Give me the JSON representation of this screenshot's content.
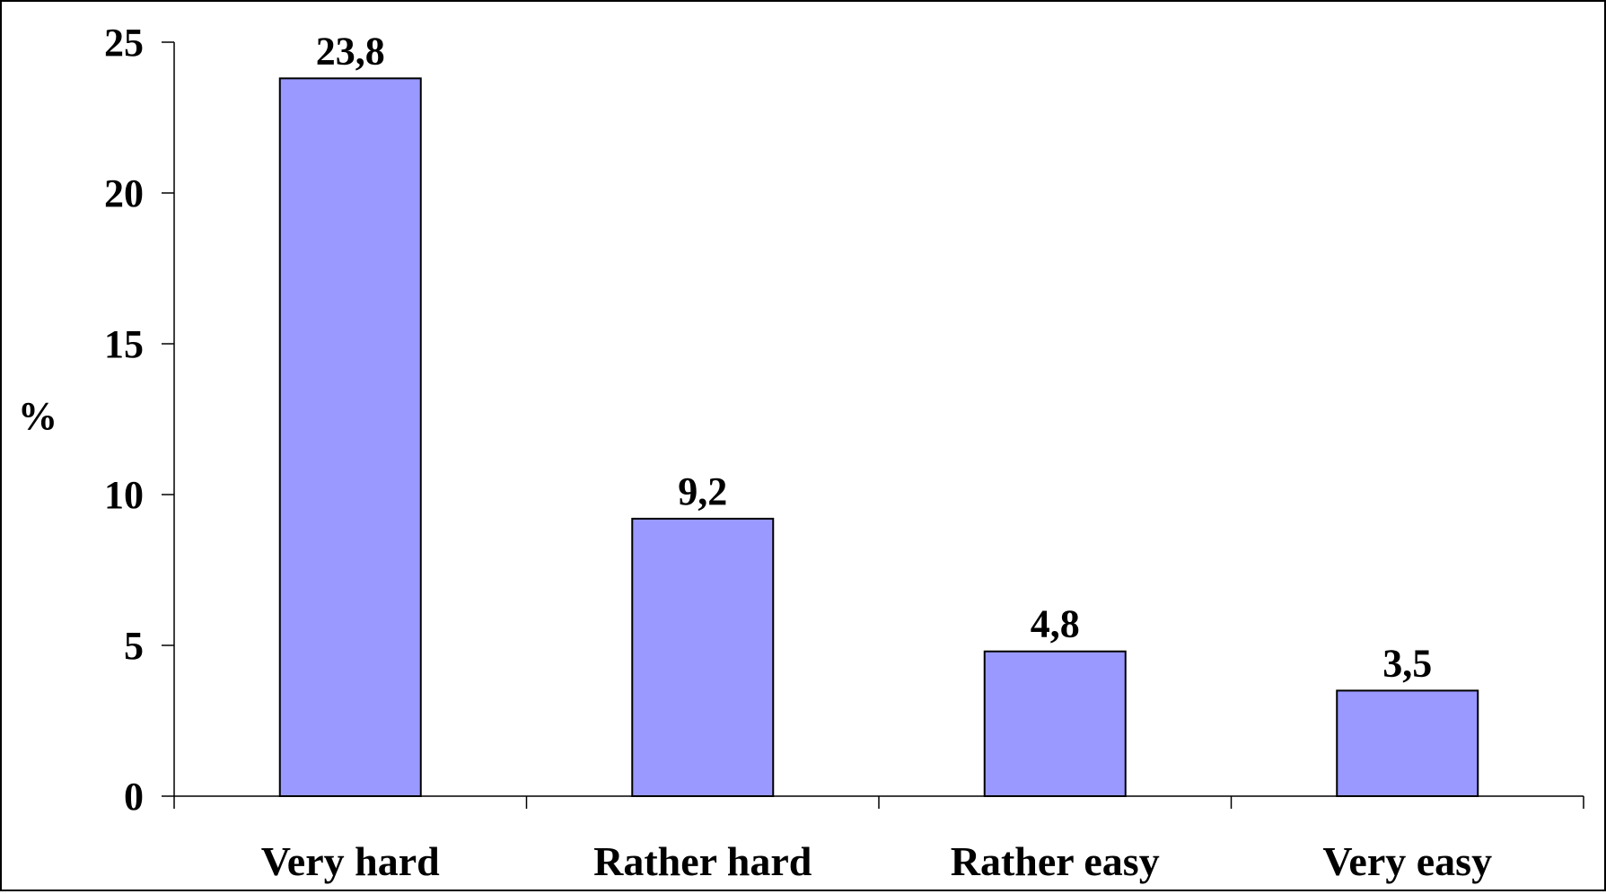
{
  "chart_data": {
    "type": "bar",
    "categories": [
      "Very hard",
      "Rather hard",
      "Rather easy",
      "Very easy"
    ],
    "values": [
      23.8,
      9.2,
      4.8,
      3.5
    ],
    "data_labels": [
      "23,8",
      "9,2",
      "4,8",
      "3,5"
    ],
    "title": "",
    "xlabel": "",
    "ylabel": "%",
    "ylim": [
      0,
      25
    ],
    "yticks": [
      0,
      5,
      10,
      15,
      20,
      25
    ],
    "ytick_labels": [
      "0",
      "5",
      "10",
      "15",
      "20",
      "25"
    ],
    "grid": false,
    "legend": "none",
    "bar_color": "#9999ff",
    "bar_edge_color": "#000000"
  }
}
